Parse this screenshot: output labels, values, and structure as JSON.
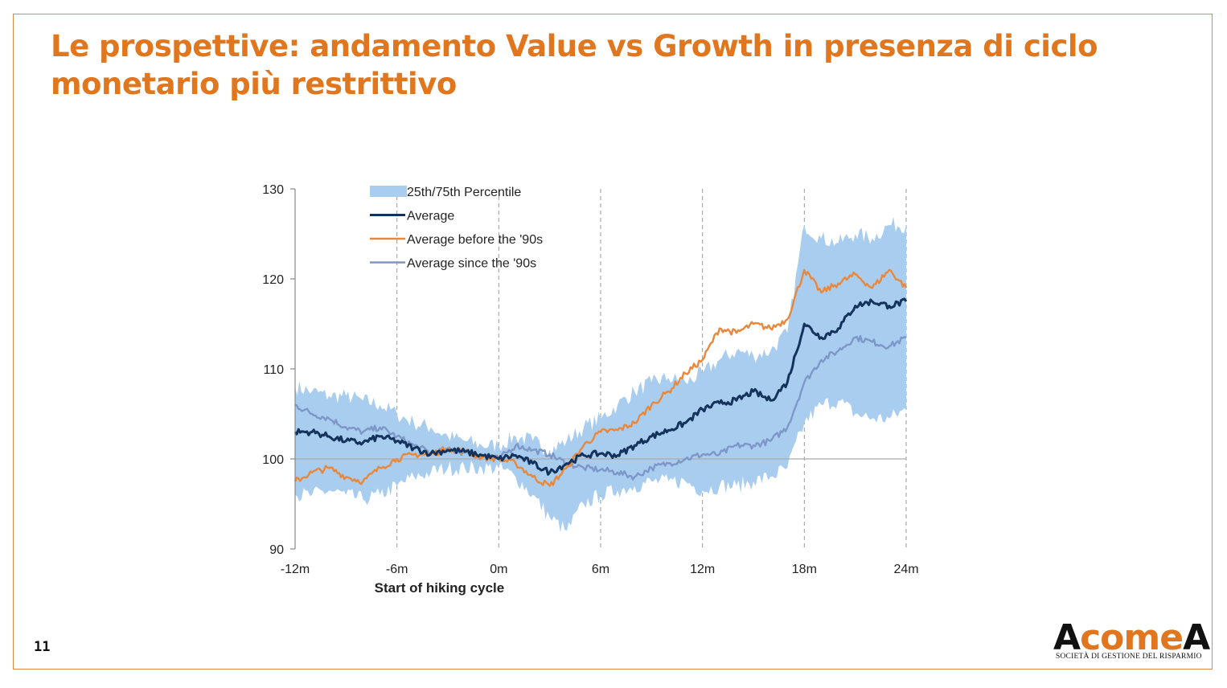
{
  "slide": {
    "title": "Le prospettive: andamento Value vs Growth in presenza di ciclo monetario più restrittivo",
    "page_number": "11"
  },
  "logo": {
    "word_a1": "A",
    "word_come": "come",
    "word_a2": "A",
    "subtitle": "SOCIETÀ DI GESTIONE DEL RISPARMIO"
  },
  "colors": {
    "band": "#a9cdef",
    "average": "#14335c",
    "before90s": "#e8883a",
    "since90s": "#7d97c9",
    "accent": "#e0761e"
  },
  "chart_data": {
    "type": "line",
    "title": "",
    "xlabel": "Start of hiking cycle",
    "ylabel": "",
    "x_ticks": [
      "-12m",
      "-6m",
      "0m",
      "6m",
      "12m",
      "18m",
      "24m"
    ],
    "x_tick_values": [
      -12,
      -6,
      0,
      6,
      12,
      18,
      24
    ],
    "y_ticks": [
      "90",
      "100",
      "110",
      "120",
      "130"
    ],
    "y_tick_values": [
      90,
      100,
      110,
      120,
      130
    ],
    "xlim": [
      -12,
      24
    ],
    "ylim": [
      90,
      130
    ],
    "baseline": 100,
    "legend_position": "top-left",
    "x": [
      -12,
      -11,
      -10,
      -9,
      -8,
      -7,
      -6,
      -5,
      -4,
      -3,
      -2,
      -1,
      0,
      1,
      2,
      3,
      4,
      5,
      6,
      7,
      8,
      9,
      10,
      11,
      12,
      13,
      14,
      15,
      16,
      17,
      18,
      19,
      20,
      21,
      22,
      23,
      24
    ],
    "band": {
      "name": "25th/75th Percentile",
      "lower": [
        96,
        96,
        96.5,
        96,
        95.5,
        96,
        97,
        98,
        98.5,
        99,
        99,
        99,
        99,
        98,
        96,
        93.5,
        92,
        95,
        96,
        96.5,
        97,
        97.5,
        97.5,
        97.5,
        96.5,
        97,
        97,
        97.5,
        98,
        99,
        104,
        106,
        106.5,
        105,
        104.5,
        104.5,
        105.5
      ],
      "upper": [
        108,
        107.5,
        107,
        107,
        106.5,
        106,
        105,
        104,
        103.5,
        102.5,
        102,
        101.5,
        101.5,
        102.5,
        102,
        101,
        102,
        103.5,
        104.5,
        106,
        107.5,
        108.5,
        109,
        108.5,
        109.5,
        111,
        112,
        111.5,
        112,
        114,
        126,
        124.5,
        124,
        125,
        124.5,
        126,
        126
      ]
    },
    "series": [
      {
        "name": "Average",
        "values": [
          103,
          103,
          102.5,
          102,
          101.8,
          102.5,
          102,
          101.2,
          100.6,
          101,
          100.8,
          100.4,
          100,
          100.4,
          99.5,
          98.5,
          99.5,
          100.4,
          100.6,
          100.4,
          101.5,
          102.5,
          103.2,
          104,
          105.5,
          106.2,
          106.5,
          107.5,
          106.5,
          108.5,
          115,
          113.5,
          114.5,
          117,
          117.5,
          117,
          117.5
        ]
      },
      {
        "name": "Average before the '90s",
        "values": [
          97.5,
          98.5,
          99,
          98,
          97.5,
          99,
          100,
          100.5,
          100.5,
          101.2,
          100.8,
          100.2,
          100,
          99.5,
          98,
          97,
          99,
          101.5,
          103,
          103.2,
          104,
          106,
          107.5,
          109.5,
          111,
          114.5,
          114,
          115,
          114.5,
          115.5,
          121,
          118.5,
          119.5,
          120.5,
          119,
          121,
          119
        ]
      },
      {
        "name": "Average since the '90s",
        "values": [
          106,
          105,
          104.5,
          103.5,
          103,
          103.5,
          102.5,
          101.5,
          100.7,
          101,
          100.7,
          100.5,
          100,
          101.5,
          101,
          100.5,
          99.5,
          99,
          98.8,
          98.5,
          98,
          99,
          99.5,
          100,
          100.5,
          100.5,
          101.5,
          101.5,
          102,
          103.5,
          108.5,
          111,
          112,
          113.5,
          113,
          112.5,
          113.5
        ]
      }
    ]
  }
}
